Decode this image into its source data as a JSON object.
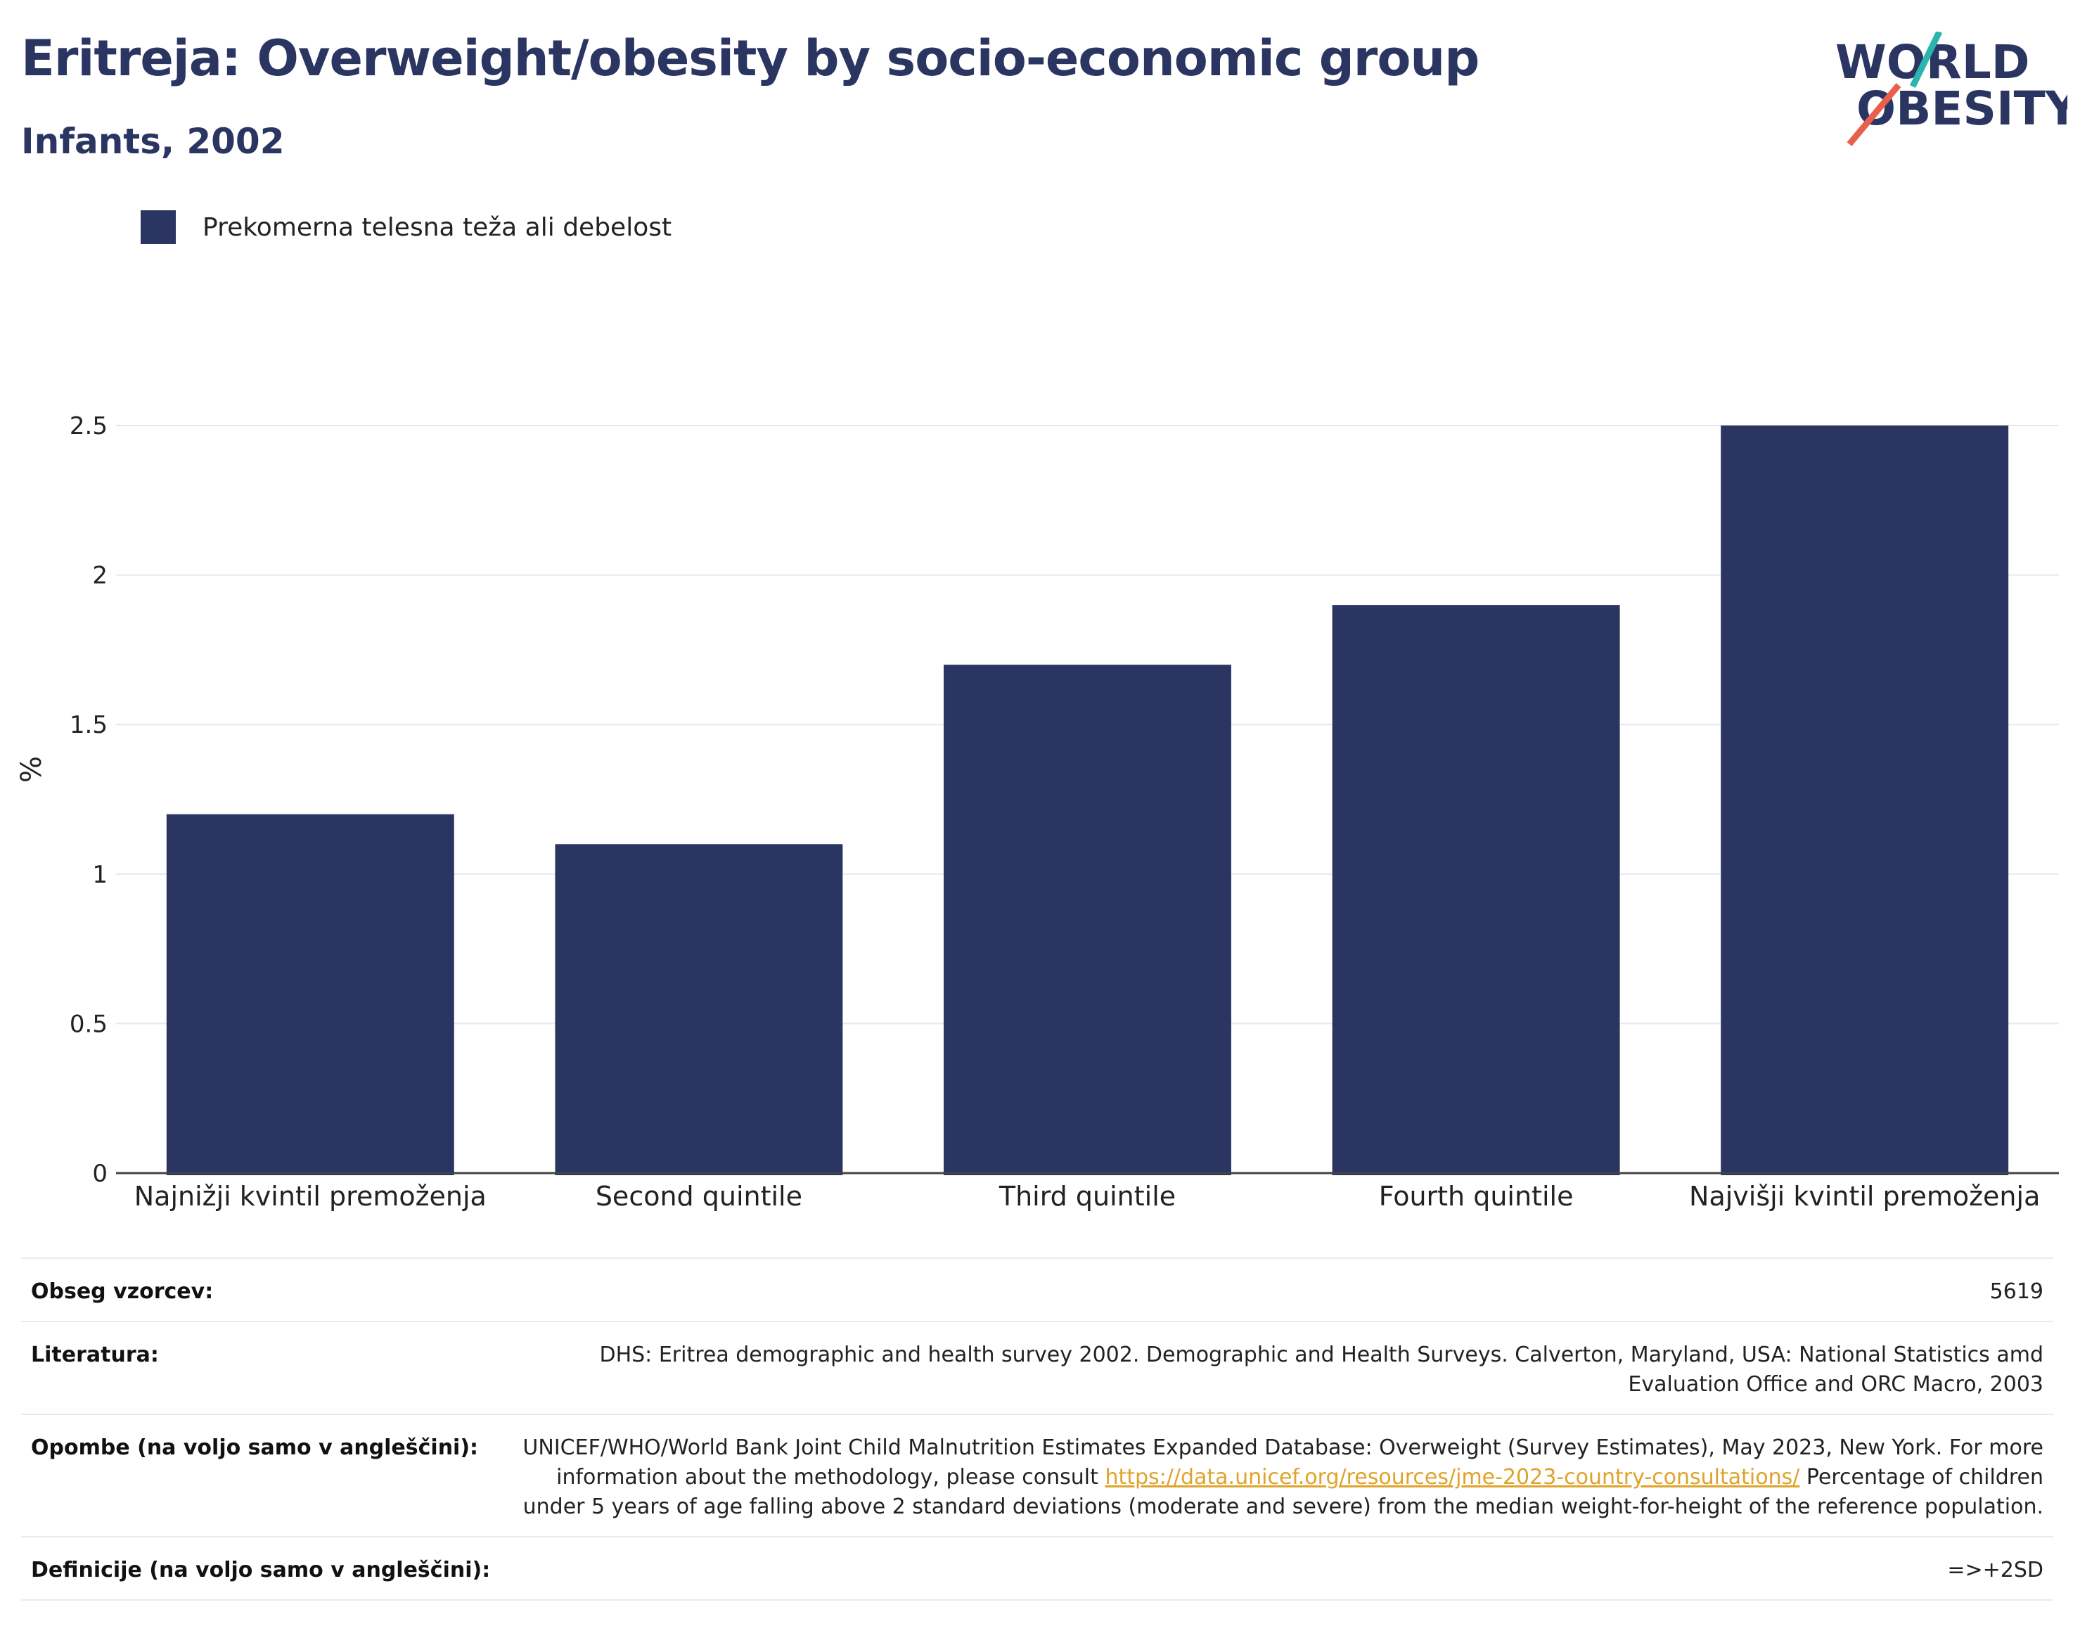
{
  "header": {
    "title": "Eritreja: Overweight/obesity by socio-economic group",
    "subtitle": "Infants, 2002"
  },
  "logo": {
    "line1": "WORLD",
    "line2": "OBESITY",
    "accent_colors": [
      "#2bb5b0",
      "#e8604c"
    ]
  },
  "legend": {
    "label": "Prekomerna telesna teža ali debelost",
    "color": "#2a3561"
  },
  "chart_data": {
    "type": "bar",
    "categories": [
      "Najnižji kvintil premoženja",
      "Second quintile",
      "Third quintile",
      "Fourth quintile",
      "Najvišji kvintil premoženja"
    ],
    "series": [
      {
        "name": "Prekomerna telesna teža ali debelost",
        "values": [
          1.2,
          1.1,
          1.7,
          1.9,
          2.5
        ],
        "color": "#2a3561"
      }
    ],
    "ylabel": "%",
    "xlabel": "",
    "ylim": [
      0,
      2.7
    ],
    "yticks": [
      0,
      0.5,
      1,
      1.5,
      2,
      2.5
    ],
    "ytick_labels": [
      "0",
      "0.5",
      "1",
      "1.5",
      "2",
      "2.5"
    ],
    "grid": true,
    "legend_position": "top-left"
  },
  "info": {
    "sample_label": "Obseg vzorcev:",
    "sample_value": "5619",
    "lit_label": "Literatura:",
    "lit_value": "DHS: Eritrea demographic and health survey 2002. Demographic and Health Surveys. Calverton, Maryland, USA: National Statistics amd Evaluation Office and ORC Macro, 2003",
    "notes_label": "Opombe (na voljo samo v angleščini):",
    "notes_text_1": "UNICEF/WHO/World Bank Joint Child Malnutrition Estimates Expanded Database: Overweight (Survey Estimates), May 2023, New York. For more information about the methodology, please consult ",
    "notes_link": "https://data.unicef.org/resources/jme-2023-country-consultations/",
    "notes_text_2": " Percentage of children under 5 years of age falling above 2 standard deviations (moderate and severe) from the median weight-for-height of the reference population.",
    "def_label": "Definicije (na voljo samo v angleščini):",
    "def_value": "=>+2SD"
  }
}
